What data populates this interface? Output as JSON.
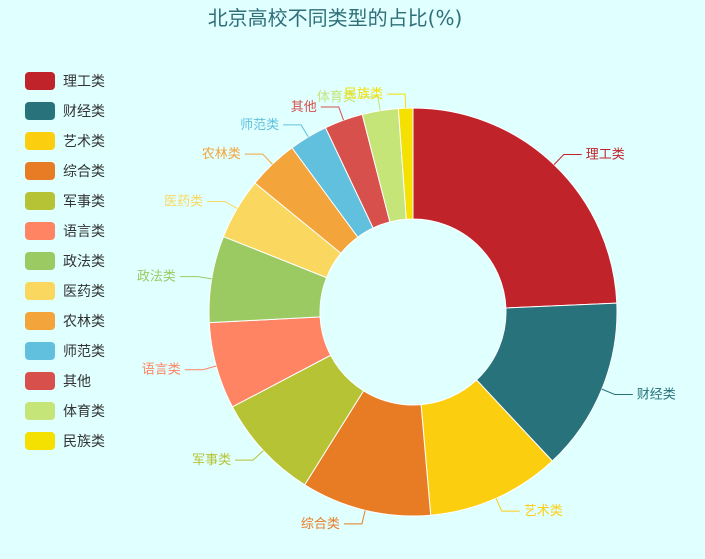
{
  "chart_data": {
    "type": "pie",
    "title": "北京高校不同类型的占比(%)",
    "categories": [
      "理工类",
      "财经类",
      "艺术类",
      "综合类",
      "军事类",
      "语言类",
      "政法类",
      "医药类",
      "农林类",
      "师范类",
      "其他",
      "体育类",
      "民族类"
    ],
    "values": [
      25.5,
      14.4,
      11.1,
      10.8,
      8.8,
      7.2,
      7.2,
      5.1,
      4.2,
      3.2,
      3.2,
      3.0,
      1.2
    ],
    "colors": [
      "#c1232b",
      "#27727b",
      "#fcce10",
      "#e87c25",
      "#b5c334",
      "#fe8463",
      "#9bca63",
      "#fad860",
      "#f3a43b",
      "#60c0dd",
      "#d7504b",
      "#c6e579",
      "#f4e001"
    ],
    "legend_position": "left",
    "donut": true
  }
}
